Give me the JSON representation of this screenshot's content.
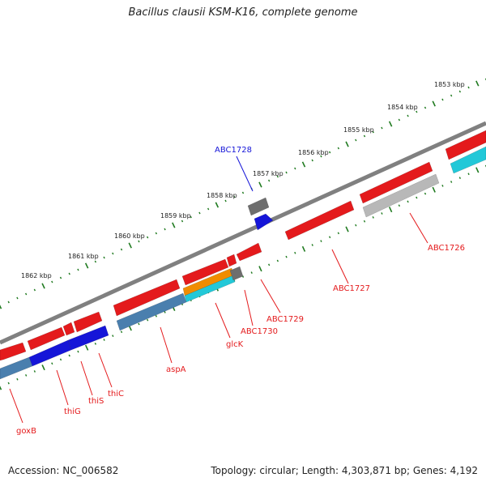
{
  "title": "Bacillus clausii KSM-K16, complete genome",
  "footer": {
    "accession": "Accession: NC_006582",
    "summary": "Topology: circular; Length: 4,303,871 bp; Genes: 4,192"
  },
  "colors": {
    "backbone": "#808080",
    "ticks": "#1f7a1f",
    "gene_red": "#e41a1c",
    "gene_blue": "#1515d8",
    "gene_steel": "#4a7fae",
    "gene_orange": "#f08c00",
    "gene_cyan": "#22c8d8",
    "gene_gray": "#b8b8b8",
    "gene_darkgray": "#6e6e6e",
    "label_red": "#e41a1c",
    "label_blue": "#1515d8"
  },
  "scale_labels": [
    "1853 kbp",
    "1854 kbp",
    "1855 kbp",
    "1856 kbp",
    "1857 kbp",
    "1858 kbp",
    "1859 kbp",
    "1860 kbp",
    "1861 kbp",
    "1862 kbp"
  ],
  "gene_labels": [
    {
      "name": "ABC1728",
      "color": "blue"
    },
    {
      "name": "ABC1726",
      "color": "red"
    },
    {
      "name": "ABC1727",
      "color": "red"
    },
    {
      "name": "ABC1729",
      "color": "red"
    },
    {
      "name": "ABC1730",
      "color": "red"
    },
    {
      "name": "glcK",
      "color": "red"
    },
    {
      "name": "aspA",
      "color": "red"
    },
    {
      "name": "thiC",
      "color": "red"
    },
    {
      "name": "thiS",
      "color": "red"
    },
    {
      "name": "thiG",
      "color": "red"
    },
    {
      "name": "goxB",
      "color": "red"
    }
  ]
}
